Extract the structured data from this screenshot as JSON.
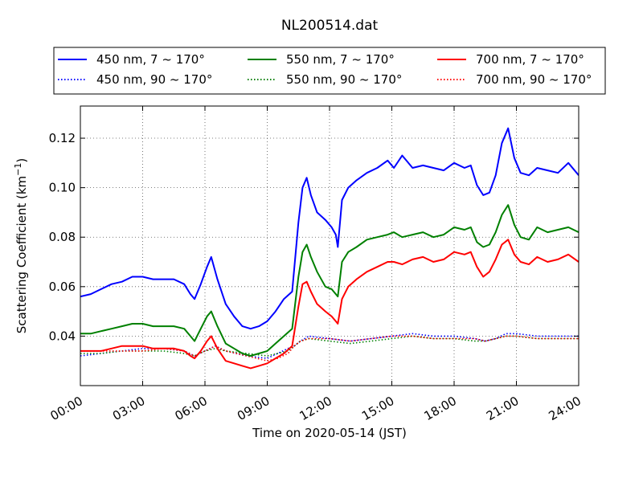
{
  "chart_data": {
    "type": "line",
    "title": "NL200514.dat",
    "xlabel": "Time on 2020-05-14 (JST)",
    "ylabel": "Scattering Coefficient (km",
    "ylabel_sup": "−1",
    "ylabel_end": ")",
    "xlim": [
      0,
      24
    ],
    "ylim": [
      0.02,
      0.133
    ],
    "x_ticks": [
      0,
      3,
      6,
      9,
      12,
      15,
      18,
      21,
      24
    ],
    "x_tick_labels": [
      "00:00",
      "03:00",
      "06:00",
      "09:00",
      "12:00",
      "15:00",
      "18:00",
      "21:00",
      "24:00"
    ],
    "y_ticks": [
      0.04,
      0.06,
      0.08,
      0.1,
      0.12
    ],
    "y_tick_labels": [
      "0.04",
      "0.06",
      "0.08",
      "0.10",
      "0.12"
    ],
    "grid": true,
    "legend_placement": "top, above plot, 3 columns",
    "series": [
      {
        "name": "450 nm, 7 ~ 170°",
        "color": "#0000ff",
        "style": "solid",
        "x": [
          0,
          0.5,
          1,
          1.5,
          2,
          2.5,
          3,
          3.5,
          4,
          4.5,
          5,
          5.3,
          5.5,
          5.8,
          6.1,
          6.3,
          6.6,
          7,
          7.4,
          7.8,
          8.2,
          8.6,
          9,
          9.4,
          9.8,
          10.2,
          10.5,
          10.7,
          10.9,
          11.1,
          11.4,
          11.8,
          12.1,
          12.3,
          12.4,
          12.6,
          12.9,
          13.3,
          13.8,
          14.3,
          14.8,
          15.1,
          15.5,
          16,
          16.5,
          17,
          17.5,
          18,
          18.5,
          18.8,
          19.1,
          19.4,
          19.7,
          20,
          20.3,
          20.6,
          20.9,
          21.2,
          21.6,
          22,
          22.5,
          23,
          23.5,
          24
        ],
        "values": [
          0.056,
          0.057,
          0.059,
          0.061,
          0.062,
          0.064,
          0.064,
          0.063,
          0.063,
          0.063,
          0.061,
          0.057,
          0.055,
          0.061,
          0.068,
          0.072,
          0.063,
          0.053,
          0.048,
          0.044,
          0.043,
          0.044,
          0.046,
          0.05,
          0.055,
          0.058,
          0.086,
          0.1,
          0.104,
          0.097,
          0.09,
          0.087,
          0.084,
          0.081,
          0.076,
          0.095,
          0.1,
          0.103,
          0.106,
          0.108,
          0.111,
          0.108,
          0.113,
          0.108,
          0.109,
          0.108,
          0.107,
          0.11,
          0.108,
          0.109,
          0.101,
          0.097,
          0.098,
          0.105,
          0.118,
          0.124,
          0.112,
          0.106,
          0.105,
          0.108,
          0.107,
          0.106,
          0.11,
          0.105
        ]
      },
      {
        "name": "550 nm, 7 ~ 170°",
        "color": "#008000",
        "style": "solid",
        "x": [
          0,
          0.5,
          1,
          1.5,
          2,
          2.5,
          3,
          3.5,
          4,
          4.5,
          5,
          5.3,
          5.5,
          5.8,
          6.1,
          6.3,
          6.6,
          7,
          7.4,
          7.8,
          8.2,
          8.6,
          9,
          9.4,
          9.8,
          10.2,
          10.5,
          10.7,
          10.9,
          11.1,
          11.4,
          11.8,
          12.1,
          12.3,
          12.4,
          12.6,
          12.9,
          13.3,
          13.8,
          14.3,
          14.8,
          15.1,
          15.5,
          16,
          16.5,
          17,
          17.5,
          18,
          18.5,
          18.8,
          19.1,
          19.4,
          19.7,
          20,
          20.3,
          20.6,
          20.9,
          21.2,
          21.6,
          22,
          22.5,
          23,
          23.5,
          24
        ],
        "values": [
          0.041,
          0.041,
          0.042,
          0.043,
          0.044,
          0.045,
          0.045,
          0.044,
          0.044,
          0.044,
          0.043,
          0.04,
          0.038,
          0.043,
          0.048,
          0.05,
          0.044,
          0.037,
          0.035,
          0.033,
          0.032,
          0.033,
          0.034,
          0.037,
          0.04,
          0.043,
          0.064,
          0.074,
          0.077,
          0.072,
          0.066,
          0.06,
          0.059,
          0.057,
          0.056,
          0.07,
          0.074,
          0.076,
          0.079,
          0.08,
          0.081,
          0.082,
          0.08,
          0.081,
          0.082,
          0.08,
          0.081,
          0.084,
          0.083,
          0.084,
          0.078,
          0.076,
          0.077,
          0.082,
          0.089,
          0.093,
          0.085,
          0.08,
          0.079,
          0.084,
          0.082,
          0.083,
          0.084,
          0.082
        ]
      },
      {
        "name": "700 nm, 7 ~ 170°",
        "color": "#ff0000",
        "style": "solid",
        "x": [
          0,
          0.5,
          1,
          1.5,
          2,
          2.5,
          3,
          3.5,
          4,
          4.5,
          5,
          5.3,
          5.5,
          5.8,
          6.1,
          6.3,
          6.6,
          7,
          7.4,
          7.8,
          8.2,
          8.6,
          9,
          9.4,
          9.8,
          10.2,
          10.5,
          10.7,
          10.9,
          11.1,
          11.4,
          11.8,
          12.1,
          12.3,
          12.4,
          12.6,
          12.9,
          13.3,
          13.8,
          14.3,
          14.8,
          15.1,
          15.5,
          16,
          16.5,
          17,
          17.5,
          18,
          18.5,
          18.8,
          19.1,
          19.4,
          19.7,
          20,
          20.3,
          20.6,
          20.9,
          21.2,
          21.6,
          22,
          22.5,
          23,
          23.5,
          24
        ],
        "values": [
          0.034,
          0.034,
          0.034,
          0.035,
          0.036,
          0.036,
          0.036,
          0.035,
          0.035,
          0.035,
          0.034,
          0.032,
          0.031,
          0.034,
          0.038,
          0.04,
          0.035,
          0.03,
          0.029,
          0.028,
          0.027,
          0.028,
          0.029,
          0.031,
          0.033,
          0.036,
          0.052,
          0.061,
          0.062,
          0.058,
          0.053,
          0.05,
          0.048,
          0.046,
          0.045,
          0.055,
          0.06,
          0.063,
          0.066,
          0.068,
          0.07,
          0.07,
          0.069,
          0.071,
          0.072,
          0.07,
          0.071,
          0.074,
          0.073,
          0.074,
          0.068,
          0.064,
          0.066,
          0.071,
          0.077,
          0.079,
          0.073,
          0.07,
          0.069,
          0.072,
          0.07,
          0.071,
          0.073,
          0.07
        ]
      },
      {
        "name": "450 nm, 90 ~ 170°",
        "color": "#0000ff",
        "style": "dotted",
        "x": [
          0,
          1,
          2,
          3,
          4,
          5,
          5.5,
          6,
          6.5,
          7,
          8,
          9,
          9.5,
          10,
          10.3,
          10.6,
          11,
          12,
          13,
          14,
          15,
          16,
          17,
          18,
          19,
          19.5,
          20,
          20.5,
          21,
          22,
          23,
          24
        ],
        "values": [
          0.032,
          0.033,
          0.034,
          0.035,
          0.035,
          0.034,
          0.032,
          0.034,
          0.036,
          0.034,
          0.032,
          0.031,
          0.033,
          0.035,
          0.036,
          0.038,
          0.04,
          0.039,
          0.038,
          0.039,
          0.04,
          0.041,
          0.04,
          0.04,
          0.039,
          0.038,
          0.039,
          0.041,
          0.041,
          0.04,
          0.04,
          0.04
        ]
      },
      {
        "name": "550 nm, 90 ~ 170°",
        "color": "#008000",
        "style": "dotted",
        "x": [
          0,
          1,
          2,
          3,
          4,
          5,
          5.5,
          6,
          6.5,
          7,
          8,
          9,
          9.5,
          10,
          10.3,
          10.6,
          11,
          12,
          13,
          14,
          15,
          16,
          17,
          18,
          19,
          19.5,
          20,
          20.5,
          21,
          22,
          23,
          24
        ],
        "values": [
          0.033,
          0.033,
          0.034,
          0.034,
          0.034,
          0.033,
          0.032,
          0.034,
          0.035,
          0.034,
          0.033,
          0.032,
          0.033,
          0.034,
          0.036,
          0.038,
          0.039,
          0.038,
          0.037,
          0.038,
          0.039,
          0.04,
          0.039,
          0.039,
          0.038,
          0.038,
          0.039,
          0.04,
          0.04,
          0.039,
          0.039,
          0.039
        ]
      },
      {
        "name": "700 nm, 90 ~ 170°",
        "color": "#ff0000",
        "style": "dotted",
        "x": [
          0,
          1,
          2,
          3,
          4,
          5,
          5.5,
          6,
          6.5,
          7,
          8,
          9,
          9.5,
          10,
          10.3,
          10.6,
          11,
          12,
          13,
          14,
          15,
          16,
          17,
          18,
          19,
          19.5,
          20,
          20.5,
          21,
          22,
          23,
          24
        ],
        "values": [
          0.034,
          0.034,
          0.034,
          0.034,
          0.035,
          0.034,
          0.032,
          0.034,
          0.036,
          0.034,
          0.032,
          0.03,
          0.031,
          0.033,
          0.036,
          0.038,
          0.039,
          0.039,
          0.038,
          0.039,
          0.04,
          0.04,
          0.039,
          0.039,
          0.039,
          0.038,
          0.039,
          0.04,
          0.04,
          0.039,
          0.039,
          0.039
        ]
      }
    ]
  }
}
